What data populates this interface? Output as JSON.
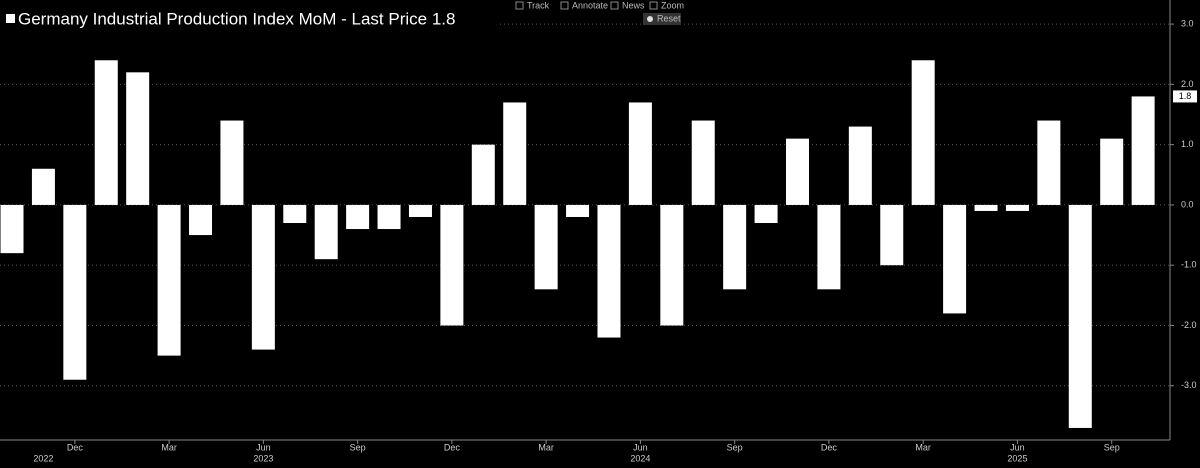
{
  "chart_data": {
    "type": "bar",
    "title": "Germany Industrial Production Index MoM - Last Price 1.8",
    "categories": [
      null,
      null,
      "Dec",
      null,
      null,
      "Mar",
      null,
      null,
      "Jun",
      null,
      null,
      "Sep",
      null,
      null,
      "Dec",
      null,
      null,
      "Mar",
      null,
      null,
      "Jun",
      null,
      null,
      "Sep",
      null,
      null,
      "Dec",
      null,
      null,
      "Mar",
      null,
      null,
      "Jun",
      null,
      null,
      "Sep",
      null
    ],
    "years": [
      null,
      "2022",
      null,
      null,
      null,
      null,
      null,
      null,
      "2023",
      null,
      null,
      null,
      null,
      null,
      null,
      null,
      null,
      null,
      null,
      null,
      "2024",
      null,
      null,
      null,
      null,
      null,
      null,
      null,
      null,
      null,
      null,
      null,
      "2025",
      null,
      null,
      null,
      null
    ],
    "values": [
      -0.8,
      0.6,
      -2.9,
      2.4,
      2.2,
      -2.5,
      -0.5,
      1.4,
      -2.4,
      -0.3,
      -0.9,
      -0.4,
      -0.4,
      -0.2,
      -2.0,
      1.0,
      1.7,
      -1.4,
      -0.2,
      -2.2,
      1.7,
      -2.0,
      1.4,
      -1.4,
      -0.3,
      1.1,
      -1.4,
      1.3,
      -1.0,
      2.4,
      -1.8,
      -0.1,
      -0.1,
      1.4,
      -3.7,
      1.1,
      1.8
    ],
    "color": "#ffffff",
    "ylim": [
      -3.9,
      3.4
    ],
    "yticks": [
      {
        "value": 3,
        "label": "3.0"
      },
      {
        "value": 2,
        "label": "2.0"
      },
      {
        "value": 1,
        "label": "1.0"
      },
      {
        "value": 0,
        "label": "0.0"
      },
      {
        "value": -1,
        "label": "-1.0"
      },
      {
        "value": -2,
        "label": "-2.0"
      },
      {
        "value": -3,
        "label": "-3.0"
      }
    ],
    "grid": true,
    "toolbar": [
      "Track",
      "Annotate",
      "News",
      "Zoom"
    ],
    "reset": "Reset"
  }
}
